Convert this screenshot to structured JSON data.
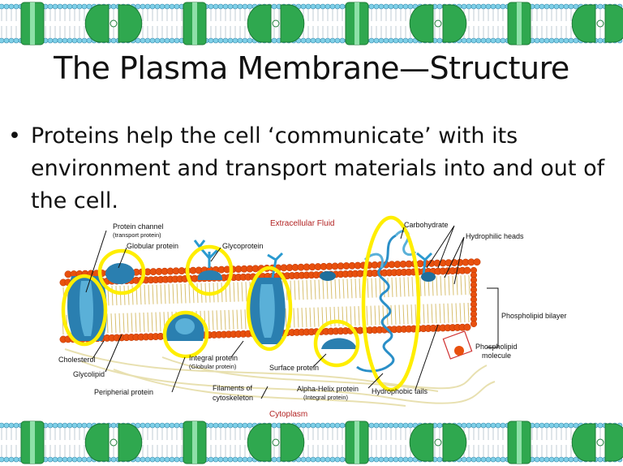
{
  "slide": {
    "title": "The Plasma Membrane—Structure",
    "bullet": "Proteins help the cell ‘communicate’ with its environment and transport materials into and out of the cell."
  },
  "diagram": {
    "regions": {
      "top": "Extracellular Fluid",
      "bottom": "Cytoplasm"
    },
    "labels": {
      "protein_channel": "Protein channel",
      "protein_channel_sub": "(transport protein)",
      "globular_protein": "Globular protein",
      "glycoprotein": "Glycoprotein",
      "carbohydrate": "Carbohydrate",
      "hydrophilic_heads": "Hydrophilic heads",
      "phospholipid_bilayer": "Phospholipid bilayer",
      "phospholipid_molecule_1": "Phospholipid",
      "phospholipid_molecule_2": "molecule",
      "cholesterol": "Cholesterol",
      "glycolipid": "Glycolipid",
      "integral_protein": "Integral protein",
      "integral_protein_sub": "(Globular protein)",
      "surface_protein": "Surface protein",
      "peripherial_protein": "Peripherial protein",
      "filaments_1": "Filaments of",
      "filaments_2": "cytoskeleton",
      "alpha_helix": "Alpha-Helix protein",
      "alpha_helix_sub": "(Integral protein)",
      "hydrophobic_tails": "Hydrophobic tails"
    }
  },
  "colors": {
    "head": "#e8500e",
    "head_dark": "#b83200",
    "tail": "#d8c070",
    "protein": "#2a7fb0",
    "protein_light": "#5ab0d8",
    "highlight": "#ffee00",
    "border_green": "#2fa84f",
    "border_light": "#8ee0a8",
    "region_red": "#b22222"
  }
}
